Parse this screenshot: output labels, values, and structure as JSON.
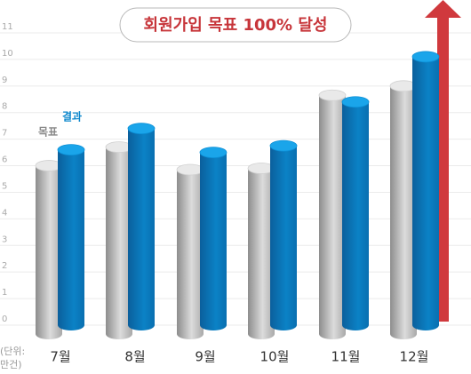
{
  "chart_data": {
    "type": "bar",
    "title": "회원가입 목표 100% 달성",
    "unit_label": "(단위: 만건)",
    "categories": [
      "7월",
      "8월",
      "9월",
      "10월",
      "11월",
      "12월"
    ],
    "series": [
      {
        "name": "목표",
        "color": "#b5b5b5",
        "values": [
          6.0,
          6.7,
          5.85,
          5.9,
          8.65,
          9.0
        ]
      },
      {
        "name": "결과",
        "color": "#0a86cc",
        "values": [
          6.6,
          7.4,
          6.5,
          6.75,
          8.4,
          10.1
        ]
      }
    ],
    "ylim": [
      0,
      11
    ],
    "yticks": [
      0,
      1,
      2,
      3,
      4,
      5,
      6,
      7,
      8,
      9,
      10,
      11
    ],
    "grid": true
  }
}
